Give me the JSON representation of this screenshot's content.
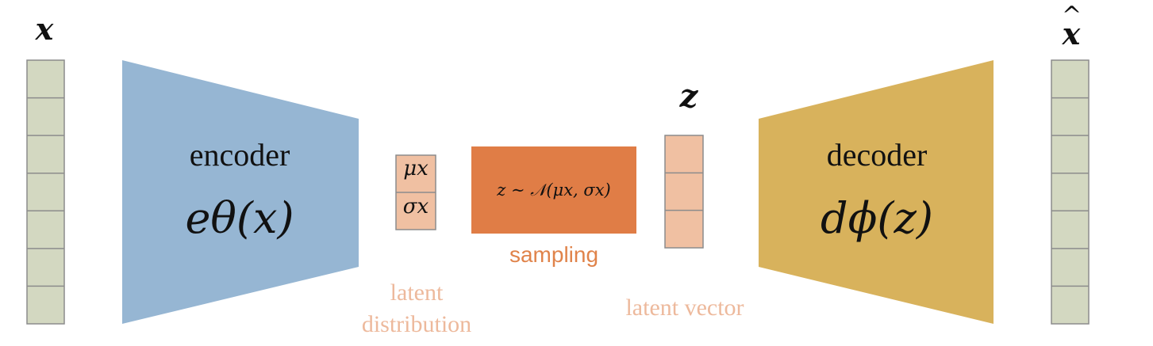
{
  "input": {
    "label": "x",
    "cells": 7,
    "color": "#d3d8c1"
  },
  "output": {
    "label": "x",
    "hat": "^",
    "cells": 7,
    "color": "#d3d8c1"
  },
  "encoder": {
    "title": "encoder",
    "function": "eθ(x)",
    "color": "#96b6d3"
  },
  "decoder": {
    "title": "decoder",
    "function": "dϕ(z)",
    "color": "#d8b25c"
  },
  "latent_distribution": {
    "mu": "μx",
    "sigma": "σx",
    "caption_line1": "latent",
    "caption_line2": "distribution",
    "color": "#f0c0a2"
  },
  "sampling": {
    "formula": "z ∼ 𝒩(μx, σx)",
    "caption": "sampling",
    "color": "#e07d46"
  },
  "latent_vector": {
    "label": "z",
    "caption": "latent vector",
    "cells": 3,
    "color": "#f0c0a2"
  }
}
